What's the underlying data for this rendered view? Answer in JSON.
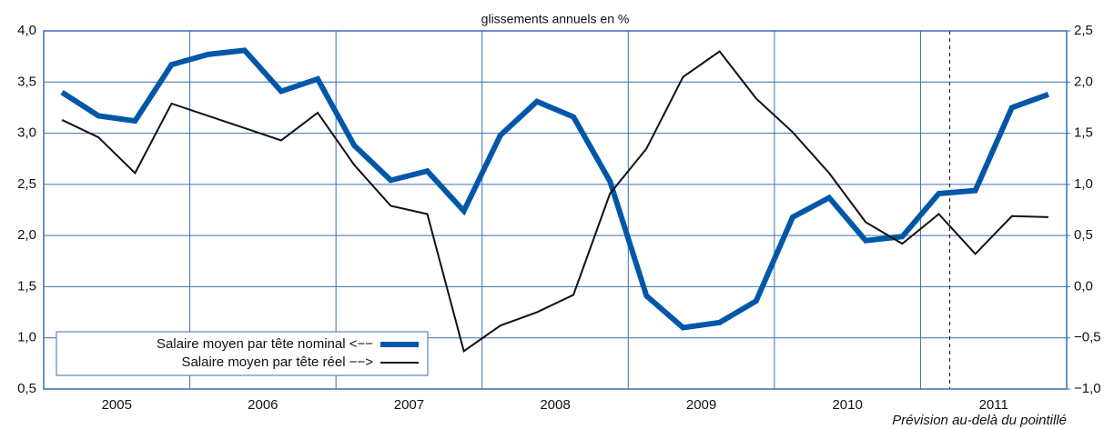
{
  "chart_data": {
    "type": "line",
    "title": "glissements annuels en %",
    "annotation": "Prévision au-delà du pointillé",
    "x": [
      2005.125,
      2005.375,
      2005.625,
      2005.875,
      2006.125,
      2006.375,
      2006.625,
      2006.875,
      2007.125,
      2007.375,
      2007.625,
      2007.875,
      2008.125,
      2008.375,
      2008.625,
      2008.875,
      2009.125,
      2009.375,
      2009.625,
      2009.875,
      2010.125,
      2010.375,
      2010.625,
      2010.875,
      2011.125,
      2011.375,
      2011.625,
      2011.875
    ],
    "xlim": [
      2005,
      2012
    ],
    "xticks": [
      {
        "value": 2005.5,
        "label": "2005"
      },
      {
        "value": 2006.5,
        "label": "2006"
      },
      {
        "value": 2007.5,
        "label": "2007"
      },
      {
        "value": 2008.5,
        "label": "2008"
      },
      {
        "value": 2009.5,
        "label": "2009"
      },
      {
        "value": 2010.5,
        "label": "2010"
      },
      {
        "value": 2011.5,
        "label": "2011"
      }
    ],
    "xgrid": [
      2006,
      2007,
      2008,
      2009,
      2010,
      2011
    ],
    "forecast_x": 2011.2,
    "ylim": [
      0.5,
      4
    ],
    "yticks": [
      {
        "value": 0.5,
        "label": "0,5"
      },
      {
        "value": 1,
        "label": "1,0"
      },
      {
        "value": 1.5,
        "label": "1,5"
      },
      {
        "value": 2,
        "label": "2,0"
      },
      {
        "value": 2.5,
        "label": "2,5"
      },
      {
        "value": 3,
        "label": "3,0"
      },
      {
        "value": 3.5,
        "label": "3,5"
      },
      {
        "value": 4,
        "label": "4,0"
      }
    ],
    "y2lim": [
      -1,
      2.5
    ],
    "y2ticks": [
      {
        "value": -1,
        "label": "−1,0"
      },
      {
        "value": -0.5,
        "label": "−0,5"
      },
      {
        "value": 0,
        "label": "0,0"
      },
      {
        "value": 0.5,
        "label": "0,5"
      },
      {
        "value": 1,
        "label": "1,0"
      },
      {
        "value": 1.5,
        "label": "1,5"
      },
      {
        "value": 2,
        "label": "2,0"
      },
      {
        "value": 2.5,
        "label": "2,5"
      }
    ],
    "grid": true,
    "legend": "lower left",
    "series": [
      {
        "name": "Salaire moyen par tête nominal <−−",
        "color": "#0057a8",
        "axis": "y",
        "values": [
          3.4,
          3.17,
          3.12,
          3.67,
          3.77,
          3.81,
          3.41,
          3.53,
          2.88,
          2.54,
          2.63,
          2.24,
          2.98,
          3.31,
          3.16,
          2.53,
          1.41,
          1.1,
          1.15,
          1.36,
          2.18,
          2.37,
          1.95,
          1.99,
          2.41,
          2.44,
          3.25,
          3.38
        ]
      },
      {
        "name": "Salaire moyen par tête réel −−>",
        "color": "#111111",
        "axis": "y2",
        "values": [
          1.63,
          1.46,
          1.11,
          1.79,
          1.67,
          1.55,
          1.43,
          1.7,
          1.19,
          0.79,
          0.71,
          -0.63,
          -0.38,
          -0.25,
          -0.08,
          0.91,
          1.35,
          2.05,
          2.3,
          1.84,
          1.51,
          1.11,
          0.63,
          0.42,
          0.71,
          0.32,
          0.69,
          0.68
        ]
      }
    ]
  }
}
